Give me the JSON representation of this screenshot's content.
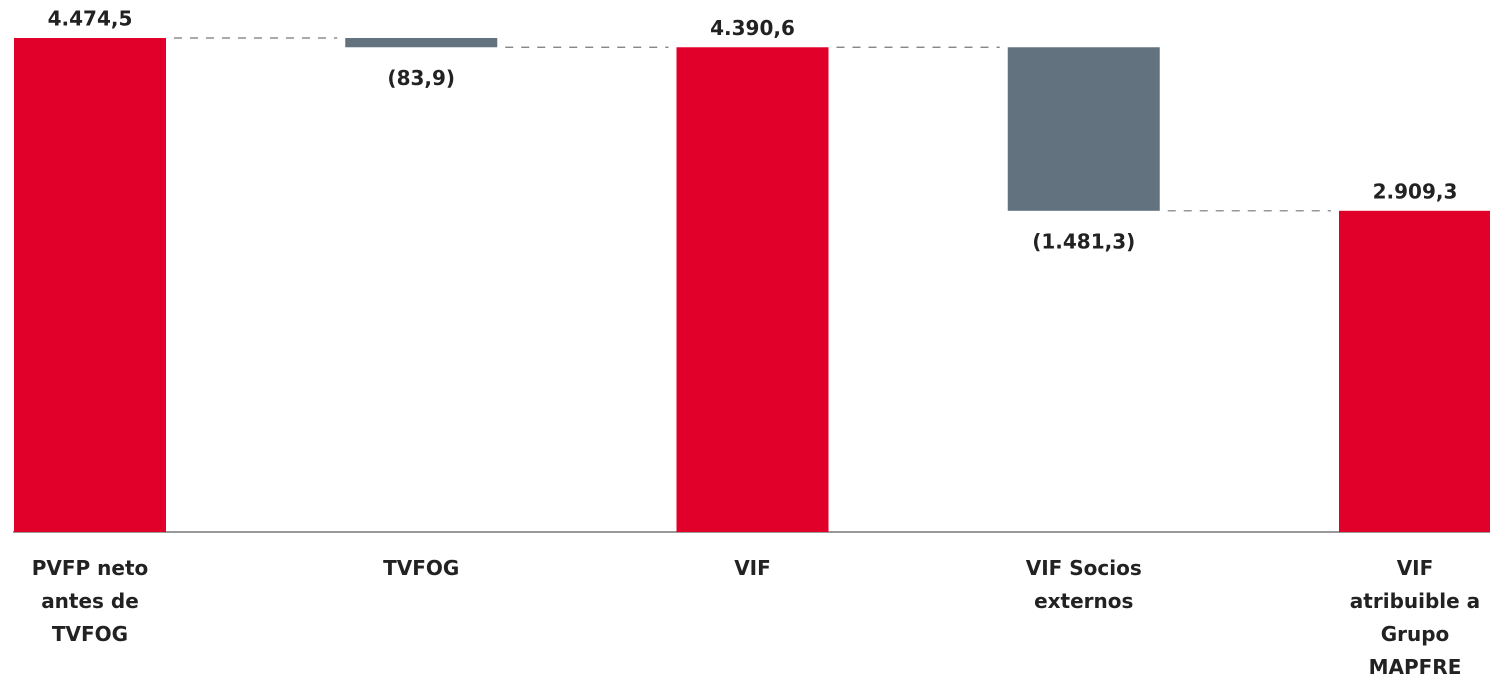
{
  "chart_data": {
    "type": "waterfall",
    "categories": [
      "PVFP neto antes de TVFOG",
      "TVFOG",
      "VIF",
      "VIF Socios externos",
      "VIF atribuible a Grupo MAPFRE"
    ],
    "values": [
      4474.5,
      -83.9,
      4390.6,
      -1481.3,
      2909.3
    ],
    "value_labels": [
      "4.474,5",
      "(83,9)",
      "4.390,6",
      "(1.481,3)",
      "2.909,3"
    ],
    "total_color": "#e0002a",
    "decrease_color": "#62727e"
  }
}
